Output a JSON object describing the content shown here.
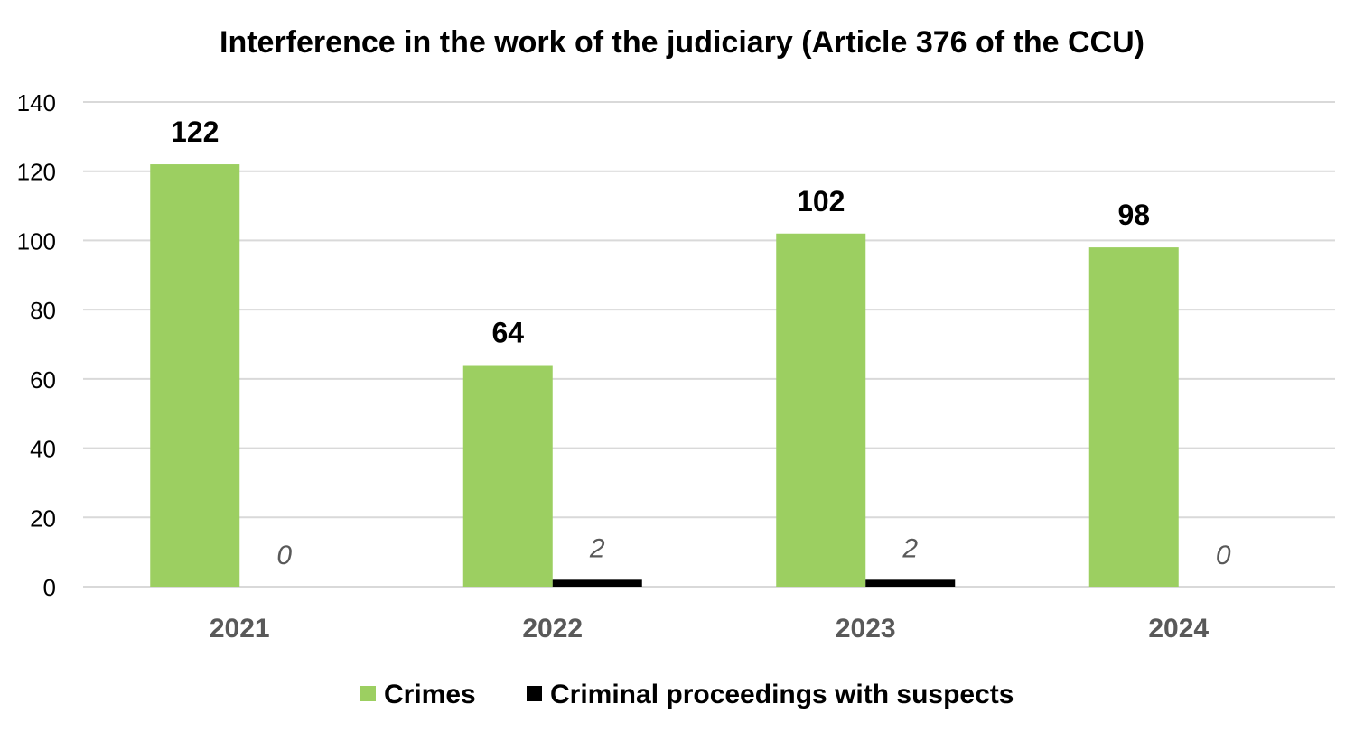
{
  "chart_data": {
    "type": "bar",
    "title": "Interference in the work of the judiciary (Article 376 of the CCU)",
    "categories": [
      "2021",
      "2022",
      "2023",
      "2024"
    ],
    "series": [
      {
        "name": "Crimes",
        "values": [
          122,
          64,
          102,
          98
        ],
        "color": "#9ccf61",
        "label_style": "bold"
      },
      {
        "name": "Criminal proceedings with suspects",
        "values": [
          0,
          2,
          2,
          0
        ],
        "color": "#000000",
        "label_style": "italic"
      }
    ],
    "yticks": [
      0,
      20,
      40,
      60,
      80,
      100,
      120,
      140
    ],
    "ylim": [
      0,
      140
    ],
    "grid": true,
    "legend_position": "bottom",
    "colors": {
      "grid": "#d9d9d9",
      "axis_text": "#000000",
      "category_text": "#595959",
      "italic_label": "#595959"
    }
  }
}
